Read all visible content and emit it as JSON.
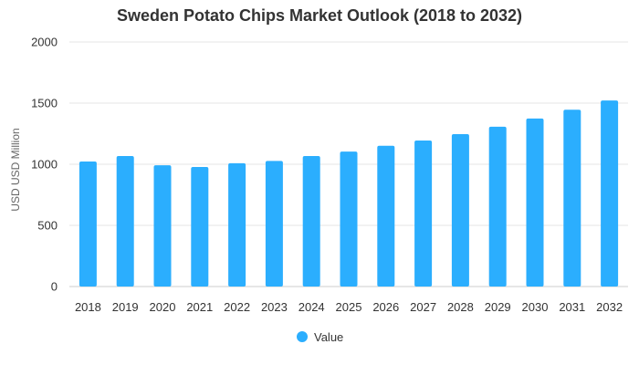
{
  "chart_data": {
    "type": "bar",
    "title": "Sweden Potato Chips Market Outlook (2018 to 2032)",
    "xlabel": "",
    "ylabel": "USD USD Million",
    "ylim": [
      0,
      2000
    ],
    "yticks": [
      0,
      500,
      1000,
      1500,
      2000
    ],
    "grid": true,
    "legend_position": "bottom",
    "categories": [
      "2018",
      "2019",
      "2020",
      "2021",
      "2022",
      "2023",
      "2024",
      "2025",
      "2026",
      "2027",
      "2028",
      "2029",
      "2030",
      "2031",
      "2032"
    ],
    "series": [
      {
        "name": "Value",
        "color": "#2BAEFE",
        "values": [
          1022,
          1067,
          992,
          978,
          1008,
          1027,
          1067,
          1104,
          1151,
          1194,
          1246,
          1307,
          1374,
          1446,
          1521
        ]
      }
    ]
  }
}
